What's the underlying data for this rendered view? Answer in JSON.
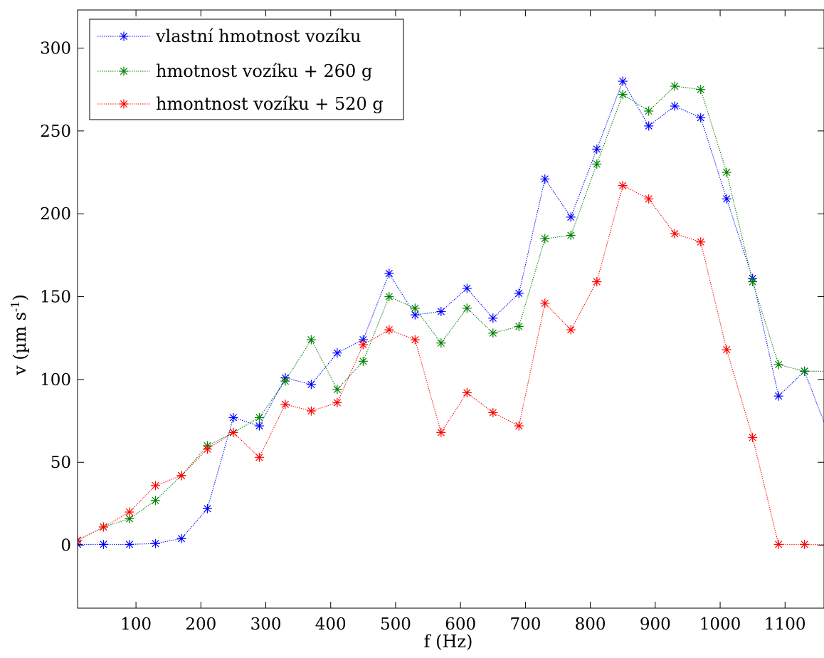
{
  "chart_data": {
    "type": "line",
    "xlabel": "f (Hz)",
    "ylabel": "v (µm s",
    "ylabel_sup": "-1",
    "ylabel_close": ")",
    "xlim": [
      10,
      1160
    ],
    "ylim": [
      -38,
      323
    ],
    "xticks": [
      100,
      200,
      300,
      400,
      500,
      600,
      700,
      800,
      900,
      1000,
      1100
    ],
    "yticks": [
      0,
      50,
      100,
      150,
      200,
      250,
      300
    ],
    "grid": false,
    "legend_position": "top-left",
    "x": [
      10,
      50,
      90,
      130,
      170,
      210,
      250,
      290,
      330,
      370,
      410,
      450,
      490,
      530,
      570,
      610,
      650,
      690,
      730,
      770,
      810,
      850,
      890,
      930,
      970,
      1010,
      1050,
      1090,
      1130,
      1170
    ],
    "series": [
      {
        "name": "vlastní hmotnost vozíku",
        "color": "#0000ff",
        "values": [
          0.5,
          0.5,
          0.5,
          1,
          4,
          22,
          77,
          72,
          101,
          97,
          116,
          124,
          164,
          139,
          141,
          155,
          137,
          152,
          221,
          198,
          239,
          280,
          253,
          265,
          258,
          209,
          161,
          90,
          105,
          64
        ]
      },
      {
        "name": "hmotnost vozíku + 260 g",
        "color": "#008000",
        "values": [
          3,
          11,
          16,
          27,
          42,
          60,
          68,
          77,
          99,
          124,
          94,
          111,
          150,
          143,
          122,
          143,
          128,
          132,
          185,
          187,
          230,
          272,
          262,
          277,
          275,
          225,
          159,
          109,
          105,
          105
        ]
      },
      {
        "name": "hmontnost vozíku + 520 g",
        "color": "#ff0000",
        "values": [
          3,
          11,
          20,
          36,
          42,
          58,
          68,
          53,
          85,
          81,
          86,
          121,
          130,
          124,
          68,
          92,
          80,
          72,
          146,
          130,
          159,
          217,
          209,
          188,
          183,
          118,
          65,
          0.5,
          0.5,
          0.5
        ]
      }
    ]
  }
}
